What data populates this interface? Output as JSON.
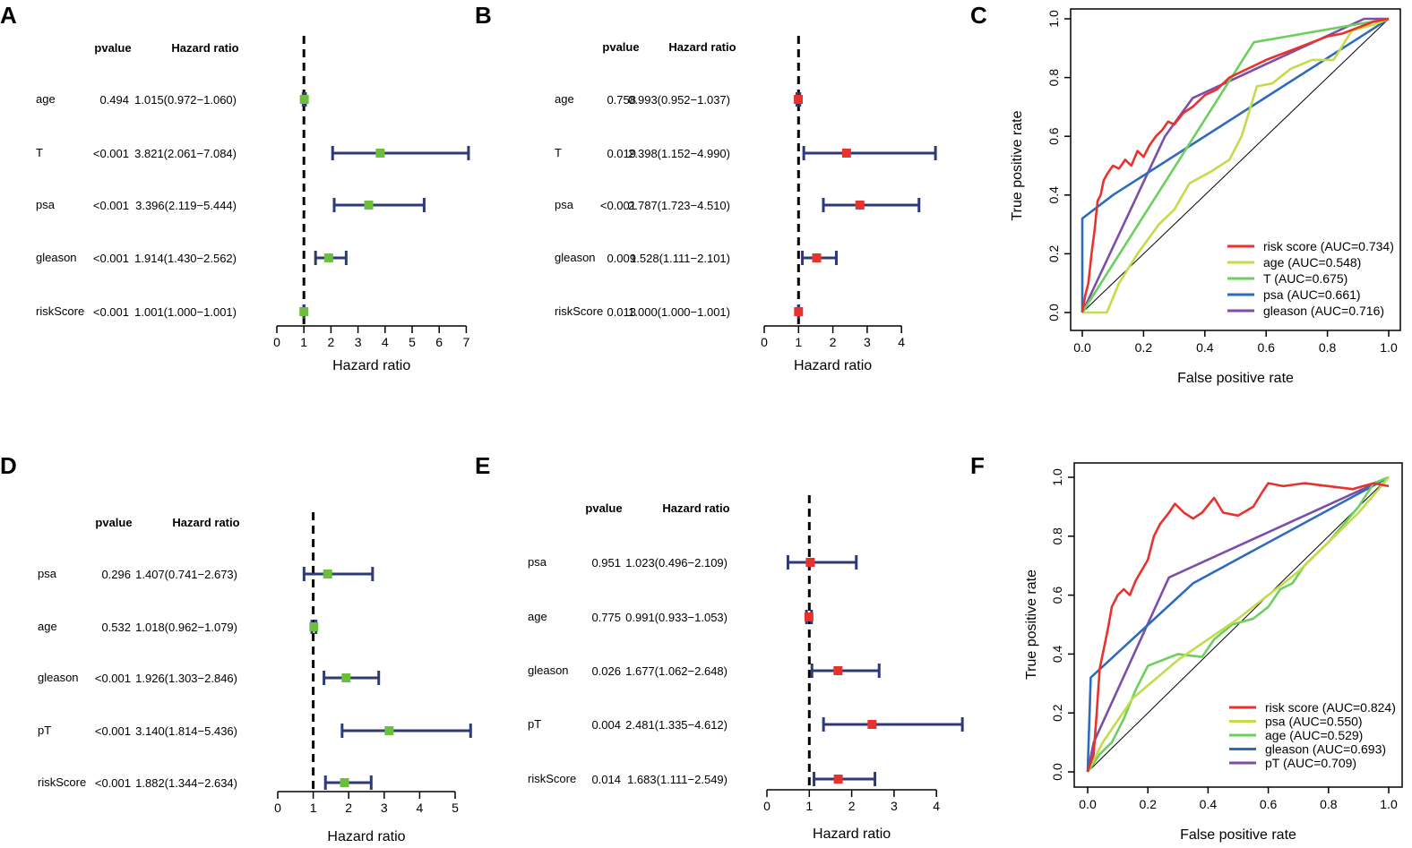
{
  "colors": {
    "whisker": "#2e3a77",
    "green_square": "#6cbf3d",
    "red_square": "#e8322e",
    "roc": {
      "red": "#e8322e",
      "yellowgreen": "#c2dc4a",
      "green": "#6ccf5e",
      "blue": "#2e6bbd",
      "purple": "#7b4ea8"
    }
  },
  "forest_plots": [
    {
      "panel": "A",
      "marker_color": "green",
      "headers": {
        "pvalue": "pvalue",
        "hr": "Hazard ratio"
      },
      "xlabel": "Hazard ratio",
      "xticks": [
        0,
        1,
        2,
        3,
        4,
        5,
        6,
        7
      ],
      "xlim": [
        0,
        7
      ],
      "rows": [
        {
          "label": "age",
          "pvalue": "0.494",
          "hr_text": "1.015(0.972−1.060)",
          "hr": 1.015,
          "lo": 0.972,
          "hi": 1.06
        },
        {
          "label": "T",
          "pvalue": "<0.001",
          "hr_text": "3.821(2.061−7.084)",
          "hr": 3.821,
          "lo": 2.061,
          "hi": 7.084
        },
        {
          "label": "psa",
          "pvalue": "<0.001",
          "hr_text": "3.396(2.119−5.444)",
          "hr": 3.396,
          "lo": 2.119,
          "hi": 5.444
        },
        {
          "label": "gleason",
          "pvalue": "<0.001",
          "hr_text": "1.914(1.430−2.562)",
          "hr": 1.914,
          "lo": 1.43,
          "hi": 2.562
        },
        {
          "label": "riskScore",
          "pvalue": "<0.001",
          "hr_text": "1.001(1.000−1.001)",
          "hr": 1.001,
          "lo": 1.0,
          "hi": 1.001
        }
      ]
    },
    {
      "panel": "B",
      "marker_color": "red",
      "headers": {
        "pvalue": "pvalue",
        "hr": "Hazard ratio"
      },
      "xlabel": "Hazard ratio",
      "xticks": [
        0,
        1,
        2,
        3,
        4
      ],
      "xlim": [
        0,
        4
      ],
      "rows": [
        {
          "label": "age",
          "pvalue": "0.758",
          "hr_text": "0.993(0.952−1.037)",
          "hr": 0.993,
          "lo": 0.952,
          "hi": 1.037
        },
        {
          "label": "T",
          "pvalue": "0.019",
          "hr_text": "2.398(1.152−4.990)",
          "hr": 2.398,
          "lo": 1.152,
          "hi": 4.99
        },
        {
          "label": "psa",
          "pvalue": "<0.001",
          "hr_text": "2.787(1.723−4.510)",
          "hr": 2.787,
          "lo": 1.723,
          "hi": 4.51
        },
        {
          "label": "gleason",
          "pvalue": "0.009",
          "hr_text": "1.528(1.111−2.101)",
          "hr": 1.528,
          "lo": 1.111,
          "hi": 2.101
        },
        {
          "label": "riskScore",
          "pvalue": "0.013",
          "hr_text": "1.000(1.000−1.001)",
          "hr": 1.0,
          "lo": 1.0,
          "hi": 1.001
        }
      ]
    },
    {
      "panel": "D",
      "marker_color": "green",
      "headers": {
        "pvalue": "pvalue",
        "hr": "Hazard ratio"
      },
      "xlabel": "Hazard ratio",
      "xticks": [
        0,
        1,
        2,
        3,
        4,
        5
      ],
      "xlim": [
        0,
        5
      ],
      "rows": [
        {
          "label": "psa",
          "pvalue": "0.296",
          "hr_text": "1.407(0.741−2.673)",
          "hr": 1.407,
          "lo": 0.741,
          "hi": 2.673
        },
        {
          "label": "age",
          "pvalue": "0.532",
          "hr_text": "1.018(0.962−1.079)",
          "hr": 1.018,
          "lo": 0.962,
          "hi": 1.079
        },
        {
          "label": "gleason",
          "pvalue": "<0.001",
          "hr_text": "1.926(1.303−2.846)",
          "hr": 1.926,
          "lo": 1.303,
          "hi": 2.846
        },
        {
          "label": "pT",
          "pvalue": "<0.001",
          "hr_text": "3.140(1.814−5.436)",
          "hr": 3.14,
          "lo": 1.814,
          "hi": 5.436
        },
        {
          "label": "riskScore",
          "pvalue": "<0.001",
          "hr_text": "1.882(1.344−2.634)",
          "hr": 1.882,
          "lo": 1.344,
          "hi": 2.634
        }
      ]
    },
    {
      "panel": "E",
      "marker_color": "red",
      "headers": {
        "pvalue": "pvalue",
        "hr": "Hazard ratio"
      },
      "xlabel": "Hazard ratio",
      "xticks": [
        0,
        1,
        2,
        3,
        4
      ],
      "xlim": [
        0,
        4
      ],
      "rows": [
        {
          "label": "psa",
          "pvalue": "0.951",
          "hr_text": "1.023(0.496−2.109)",
          "hr": 1.023,
          "lo": 0.496,
          "hi": 2.109
        },
        {
          "label": "age",
          "pvalue": "0.775",
          "hr_text": "0.991(0.933−1.053)",
          "hr": 0.991,
          "lo": 0.933,
          "hi": 1.053
        },
        {
          "label": "gleason",
          "pvalue": "0.026",
          "hr_text": "1.677(1.062−2.648)",
          "hr": 1.677,
          "lo": 1.062,
          "hi": 2.648
        },
        {
          "label": "pT",
          "pvalue": "0.004",
          "hr_text": "2.481(1.335−4.612)",
          "hr": 2.481,
          "lo": 1.335,
          "hi": 4.612
        },
        {
          "label": "riskScore",
          "pvalue": "0.014",
          "hr_text": "1.683(1.111−2.549)",
          "hr": 1.683,
          "lo": 1.111,
          "hi": 2.549
        }
      ]
    }
  ],
  "roc_plots": [
    {
      "panel": "C",
      "xlabel": "False positive rate",
      "ylabel": "True positive rate",
      "ticks": [
        "0.0",
        "0.2",
        "0.4",
        "0.6",
        "0.8",
        "1.0"
      ],
      "series": [
        {
          "legend": "risk score (AUC=0.734)",
          "color": "red",
          "points": [
            [
              0,
              0
            ],
            [
              0.01,
              0.06
            ],
            [
              0.02,
              0.1
            ],
            [
              0.03,
              0.2
            ],
            [
              0.04,
              0.28
            ],
            [
              0.05,
              0.38
            ],
            [
              0.06,
              0.4
            ],
            [
              0.07,
              0.45
            ],
            [
              0.08,
              0.47
            ],
            [
              0.1,
              0.5
            ],
            [
              0.12,
              0.49
            ],
            [
              0.14,
              0.52
            ],
            [
              0.16,
              0.5
            ],
            [
              0.18,
              0.55
            ],
            [
              0.2,
              0.53
            ],
            [
              0.22,
              0.57
            ],
            [
              0.24,
              0.6
            ],
            [
              0.26,
              0.62
            ],
            [
              0.28,
              0.65
            ],
            [
              0.3,
              0.64
            ],
            [
              0.33,
              0.68
            ],
            [
              0.36,
              0.7
            ],
            [
              0.4,
              0.74
            ],
            [
              0.44,
              0.76
            ],
            [
              0.48,
              0.8
            ],
            [
              0.52,
              0.82
            ],
            [
              0.56,
              0.84
            ],
            [
              0.6,
              0.86
            ],
            [
              0.65,
              0.88
            ],
            [
              0.7,
              0.9
            ],
            [
              0.75,
              0.92
            ],
            [
              0.8,
              0.94
            ],
            [
              0.85,
              0.95
            ],
            [
              0.9,
              0.97
            ],
            [
              0.95,
              0.99
            ],
            [
              1,
              1
            ]
          ]
        },
        {
          "legend": "age (AUC=0.548)",
          "color": "yellowgreen",
          "points": [
            [
              0,
              0
            ],
            [
              0.08,
              0
            ],
            [
              0.12,
              0.1
            ],
            [
              0.18,
              0.2
            ],
            [
              0.25,
              0.3
            ],
            [
              0.3,
              0.35
            ],
            [
              0.35,
              0.44
            ],
            [
              0.42,
              0.48
            ],
            [
              0.48,
              0.52
            ],
            [
              0.52,
              0.6
            ],
            [
              0.57,
              0.77
            ],
            [
              0.62,
              0.78
            ],
            [
              0.68,
              0.83
            ],
            [
              0.75,
              0.86
            ],
            [
              0.82,
              0.86
            ],
            [
              0.88,
              0.96
            ],
            [
              0.95,
              0.98
            ],
            [
              1,
              1
            ]
          ]
        },
        {
          "legend": "T (AUC=0.675)",
          "color": "green",
          "points": [
            [
              0,
              0
            ],
            [
              0.56,
              0.92
            ],
            [
              1,
              1
            ]
          ]
        },
        {
          "legend": "psa (AUC=0.661)",
          "color": "blue",
          "points": [
            [
              0,
              0
            ],
            [
              0,
              0.32
            ],
            [
              0.1,
              0.4
            ],
            [
              1,
              1
            ]
          ]
        },
        {
          "legend": "gleason (AUC=0.716)",
          "color": "purple",
          "points": [
            [
              0,
              0
            ],
            [
              0.27,
              0.6
            ],
            [
              0.36,
              0.73
            ],
            [
              0.92,
              1
            ],
            [
              1,
              1
            ]
          ]
        }
      ]
    },
    {
      "panel": "F",
      "xlabel": "False positive rate",
      "ylabel": "True positive rate",
      "ticks": [
        "0.0",
        "0.2",
        "0.4",
        "0.6",
        "0.8",
        "1.0"
      ],
      "series": [
        {
          "legend": "risk score (AUC=0.824)",
          "color": "red",
          "points": [
            [
              0,
              0
            ],
            [
              0.02,
              0.06
            ],
            [
              0.03,
              0.2
            ],
            [
              0.04,
              0.35
            ],
            [
              0.05,
              0.4
            ],
            [
              0.06,
              0.45
            ],
            [
              0.07,
              0.5
            ],
            [
              0.08,
              0.56
            ],
            [
              0.1,
              0.6
            ],
            [
              0.12,
              0.62
            ],
            [
              0.14,
              0.6
            ],
            [
              0.16,
              0.65
            ],
            [
              0.2,
              0.72
            ],
            [
              0.22,
              0.8
            ],
            [
              0.24,
              0.84
            ],
            [
              0.27,
              0.88
            ],
            [
              0.29,
              0.91
            ],
            [
              0.32,
              0.88
            ],
            [
              0.35,
              0.86
            ],
            [
              0.38,
              0.88
            ],
            [
              0.42,
              0.93
            ],
            [
              0.45,
              0.88
            ],
            [
              0.5,
              0.87
            ],
            [
              0.55,
              0.9
            ],
            [
              0.58,
              0.95
            ],
            [
              0.6,
              0.98
            ],
            [
              0.65,
              0.97
            ],
            [
              0.72,
              0.98
            ],
            [
              0.8,
              0.97
            ],
            [
              0.88,
              0.96
            ],
            [
              0.95,
              0.98
            ],
            [
              1,
              0.97
            ]
          ]
        },
        {
          "legend": "psa (AUC=0.550)",
          "color": "yellowgreen",
          "points": [
            [
              0,
              0
            ],
            [
              0.05,
              0.1
            ],
            [
              0.15,
              0.25
            ],
            [
              0.3,
              0.38
            ],
            [
              0.5,
              0.52
            ],
            [
              0.7,
              0.68
            ],
            [
              0.9,
              0.88
            ],
            [
              1,
              1
            ]
          ]
        },
        {
          "legend": "age (AUC=0.529)",
          "color": "green",
          "points": [
            [
              0,
              0
            ],
            [
              0.04,
              0.06
            ],
            [
              0.08,
              0.1
            ],
            [
              0.12,
              0.18
            ],
            [
              0.16,
              0.28
            ],
            [
              0.2,
              0.36
            ],
            [
              0.25,
              0.38
            ],
            [
              0.3,
              0.4
            ],
            [
              0.38,
              0.39
            ],
            [
              0.42,
              0.45
            ],
            [
              0.48,
              0.5
            ],
            [
              0.55,
              0.52
            ],
            [
              0.6,
              0.56
            ],
            [
              0.64,
              0.62
            ],
            [
              0.68,
              0.64
            ],
            [
              0.72,
              0.7
            ],
            [
              0.76,
              0.74
            ],
            [
              0.8,
              0.78
            ],
            [
              0.85,
              0.84
            ],
            [
              0.9,
              0.9
            ],
            [
              0.95,
              0.98
            ],
            [
              1,
              1
            ]
          ]
        },
        {
          "legend": "gleason (AUC=0.693)",
          "color": "blue",
          "points": [
            [
              0,
              0
            ],
            [
              0.01,
              0.32
            ],
            [
              0.35,
              0.64
            ],
            [
              1,
              1
            ]
          ]
        },
        {
          "legend": "pT (AUC=0.709)",
          "color": "purple",
          "points": [
            [
              0,
              0
            ],
            [
              0.02,
              0.1
            ],
            [
              0.27,
              0.66
            ],
            [
              1,
              1
            ]
          ]
        }
      ]
    }
  ]
}
